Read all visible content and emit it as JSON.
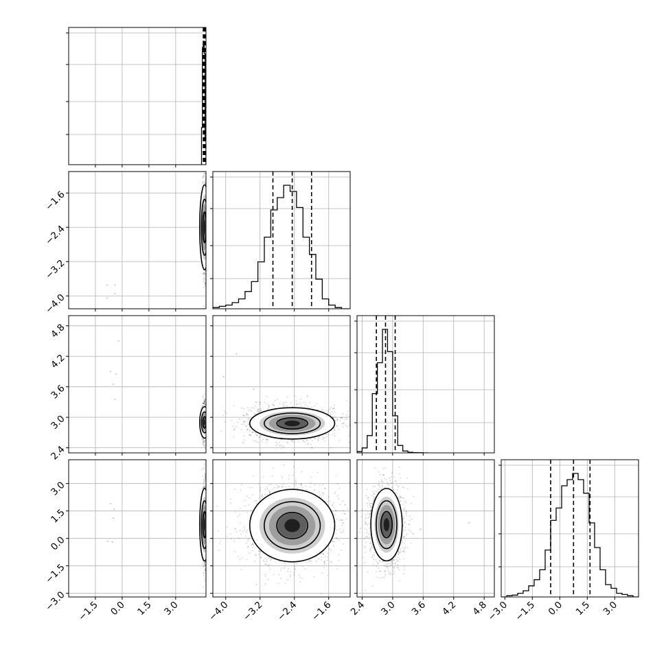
{
  "chart_data": {
    "type": "corner",
    "colors": {
      "ink": "#000000",
      "grid": "#b0b0b0",
      "frame": "#000000"
    },
    "grid": true,
    "variables": [
      {
        "index": 0,
        "range": [
          -3.0,
          4.7
        ],
        "xticks": [
          "−1.5",
          "0.0",
          "1.5",
          "3.0"
        ],
        "yticks": []
      },
      {
        "index": 1,
        "range": [
          -4.3,
          -1.1
        ],
        "xticks": [
          "−4.0",
          "−3.2",
          "−2.4",
          "−1.6"
        ],
        "yticks": [
          "−1.6",
          "−2.4",
          "−3.2",
          "−4.0"
        ]
      },
      {
        "index": 2,
        "range": [
          2.3,
          5.0
        ],
        "xticks": [
          "2.4",
          "3.0",
          "3.6",
          "4.2",
          "4.8"
        ],
        "yticks": [
          "4.8",
          "4.2",
          "3.6",
          "3.0",
          "2.4"
        ]
      },
      {
        "index": 3,
        "range": [
          -3.2,
          4.3
        ],
        "xticks": [
          "−3.0",
          "−1.5",
          "0.0",
          "1.5",
          "3.0"
        ],
        "yticks": [
          "3.0",
          "1.5",
          "0.0",
          "−1.5",
          "−3.0"
        ]
      }
    ],
    "tick_values": {
      "v0": [
        -1.5,
        0.0,
        1.5,
        3.0
      ],
      "v1": [
        -4.0,
        -3.2,
        -2.4,
        -1.6
      ],
      "v2": [
        2.4,
        3.0,
        3.6,
        4.2,
        4.8
      ],
      "v3": [
        -3.0,
        -1.5,
        0.0,
        1.5,
        3.0
      ]
    },
    "histograms": [
      {
        "variable": 0,
        "bin_edges": [
          4.45,
          4.5,
          4.55,
          4.6,
          4.65,
          4.7
        ],
        "counts": [
          0.3,
          0.95,
          1.0,
          0.9,
          0.2
        ],
        "quantiles": [
          4.55,
          4.6,
          4.65
        ]
      },
      {
        "variable": 1,
        "bin_edges": [
          -4.3,
          -4.15,
          -4.0,
          -3.85,
          -3.7,
          -3.55,
          -3.4,
          -3.25,
          -3.1,
          -2.95,
          -2.8,
          -2.65,
          -2.5,
          -2.35,
          -2.2,
          -2.05,
          -1.9,
          -1.75,
          -1.6,
          -1.45,
          -1.3,
          -1.15
        ],
        "counts": [
          0.01,
          0.02,
          0.03,
          0.05,
          0.08,
          0.14,
          0.22,
          0.38,
          0.58,
          0.8,
          0.9,
          1.0,
          0.95,
          0.82,
          0.58,
          0.44,
          0.24,
          0.08,
          0.03,
          0.01,
          0.0
        ],
        "quantiles": [
          -2.9,
          -2.45,
          -2.0
        ]
      },
      {
        "variable": 2,
        "bin_edges": [
          2.3,
          2.4,
          2.5,
          2.6,
          2.7,
          2.8,
          2.9,
          3.0,
          3.1,
          3.2,
          3.3,
          3.4,
          3.5,
          3.6,
          3.7
        ],
        "counts": [
          0.01,
          0.04,
          0.14,
          0.48,
          0.73,
          1.0,
          0.82,
          0.3,
          0.06,
          0.015,
          0.005,
          0.002,
          0.001,
          0.0
        ],
        "quantiles": [
          2.68,
          2.86,
          3.05
        ]
      },
      {
        "variable": 3,
        "bin_edges": [
          -3.2,
          -2.9,
          -2.6,
          -2.3,
          -2.0,
          -1.7,
          -1.4,
          -1.1,
          -0.8,
          -0.5,
          -0.2,
          0.1,
          0.4,
          0.7,
          1.0,
          1.3,
          1.6,
          1.9,
          2.2,
          2.5,
          2.8,
          3.1,
          3.4,
          3.7,
          4.0,
          4.3
        ],
        "counts": [
          0.0,
          0.01,
          0.015,
          0.03,
          0.05,
          0.09,
          0.14,
          0.22,
          0.38,
          0.62,
          0.72,
          0.9,
          0.95,
          1.0,
          0.95,
          0.84,
          0.6,
          0.4,
          0.22,
          0.1,
          0.07,
          0.03,
          0.02,
          0.01,
          0.0
        ],
        "quantiles": [
          -0.5,
          0.75,
          1.65
        ]
      }
    ],
    "pairs": [
      {
        "x": 0,
        "y": 1,
        "center": [
          4.62,
          -2.4
        ],
        "sigma": [
          0.05,
          0.45
        ],
        "outliers": [
          [
            -0.85,
            -3.75
          ],
          [
            -0.4,
            -3.75
          ],
          [
            -0.4,
            -3.95
          ],
          [
            -0.85,
            -4.05
          ]
        ]
      },
      {
        "x": 0,
        "y": 2,
        "center": [
          4.62,
          2.9
        ],
        "sigma": [
          0.05,
          0.14
        ],
        "outliers": [
          [
            -0.65,
            3.9
          ],
          [
            -0.35,
            3.85
          ],
          [
            -0.5,
            3.65
          ],
          [
            -0.4,
            3.35
          ],
          [
            -0.2,
            4.5
          ]
        ]
      },
      {
        "x": 1,
        "y": 2,
        "center": [
          -2.45,
          2.88
        ],
        "sigma": [
          0.45,
          0.14
        ],
        "outliers": [
          [
            -3.75,
            4.25
          ],
          [
            -4.05,
            3.8
          ],
          [
            -3.35,
            3.55
          ]
        ]
      },
      {
        "x": 0,
        "y": 3,
        "center": [
          4.62,
          0.75
        ],
        "sigma": [
          0.05,
          0.9
        ],
        "outliers": [
          [
            -0.65,
            1.9
          ],
          [
            -0.45,
            1.6
          ],
          [
            -0.5,
            1.1
          ],
          [
            -0.8,
            -0.15
          ],
          [
            -0.55,
            -0.2
          ]
        ]
      },
      {
        "x": 1,
        "y": 3,
        "center": [
          -2.45,
          0.7
        ],
        "sigma": [
          0.45,
          0.9
        ],
        "outliers": []
      },
      {
        "x": 2,
        "y": 3,
        "center": [
          2.88,
          0.75
        ],
        "sigma": [
          0.14,
          0.9
        ],
        "outliers": [
          [
            3.4,
            0.25
          ],
          [
            3.55,
            0.5
          ],
          [
            4.5,
            0.85
          ]
        ]
      }
    ]
  }
}
